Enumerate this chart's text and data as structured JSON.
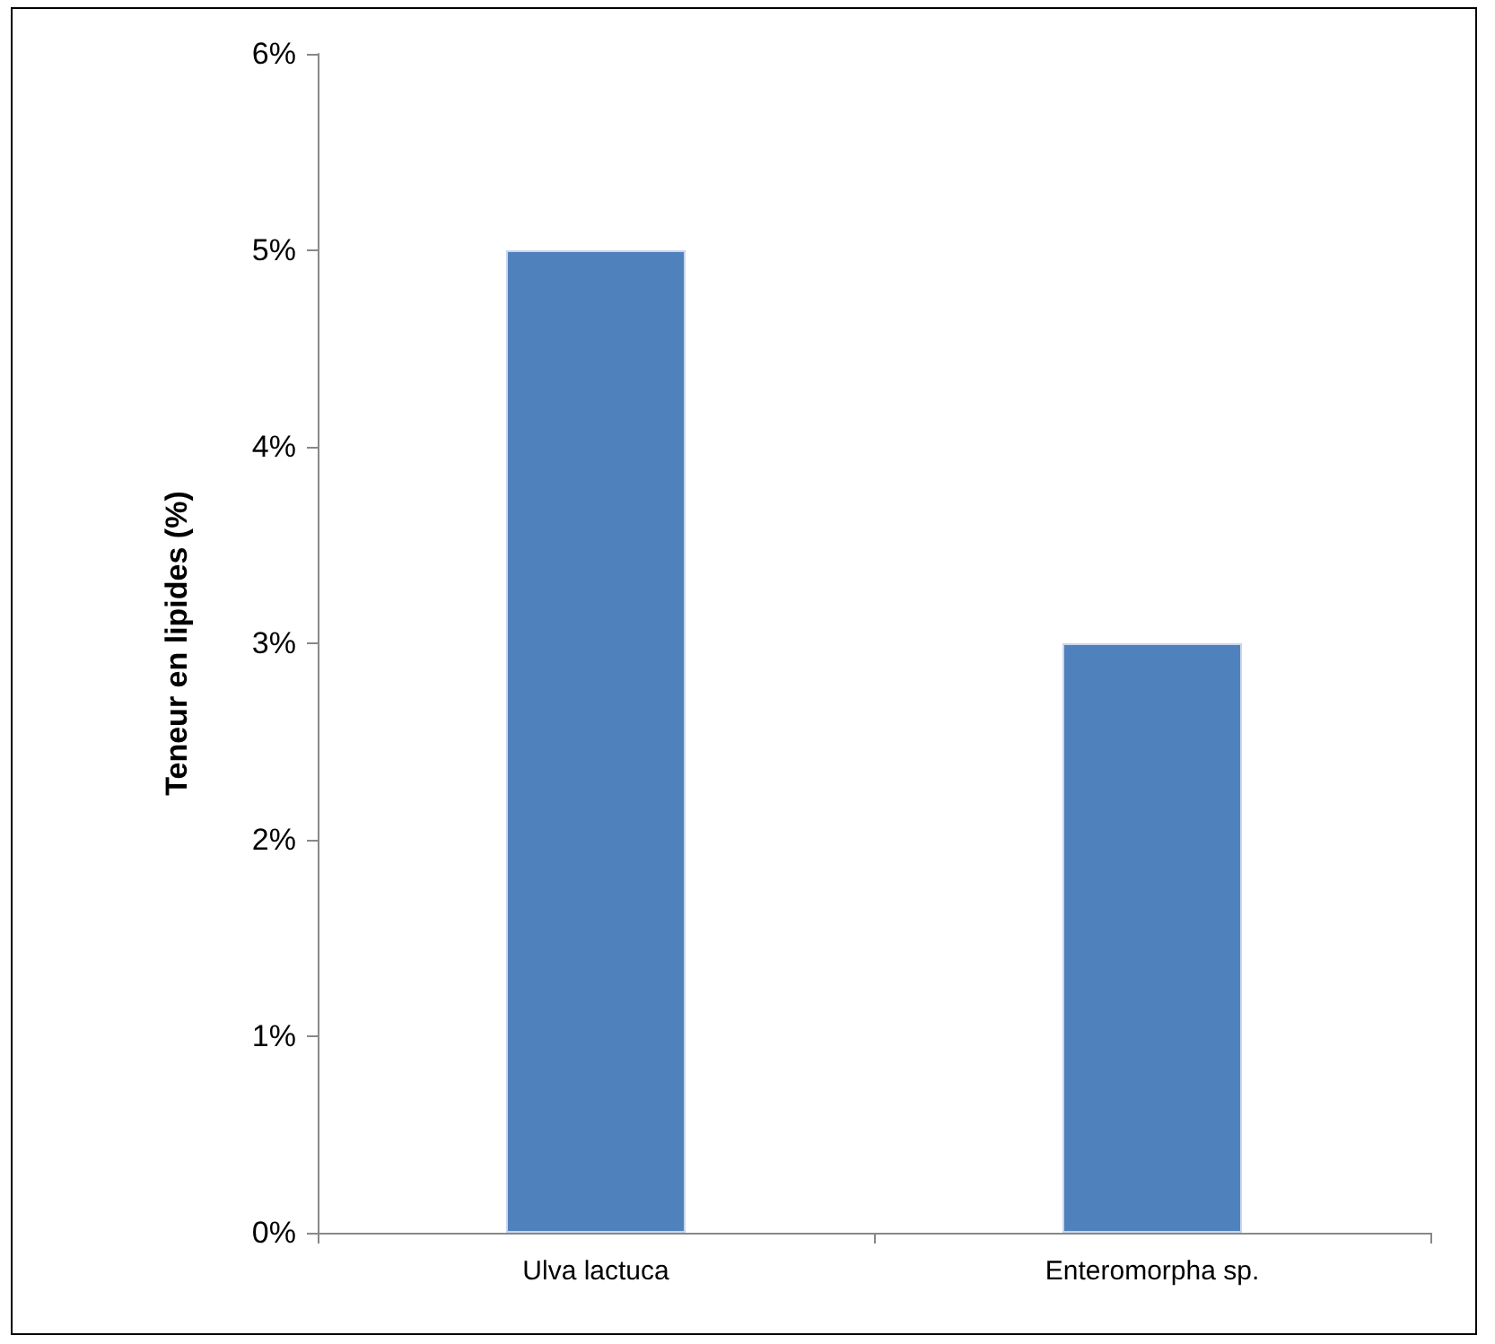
{
  "chart_data": {
    "type": "bar",
    "ylabel": "Teneur en lipides (%)",
    "categories": [
      "Ulva lactuca",
      "Enteromorpha sp."
    ],
    "values": [
      5,
      3
    ],
    "color": "#4f81bd",
    "ylim": [
      0,
      6
    ],
    "yticks": [
      {
        "value": 0,
        "label": "0%"
      },
      {
        "value": 1,
        "label": "1%"
      },
      {
        "value": 2,
        "label": "2%"
      },
      {
        "value": 3,
        "label": "3%"
      },
      {
        "value": 4,
        "label": "4%"
      },
      {
        "value": 5,
        "label": "5%"
      },
      {
        "value": 6,
        "label": "6%"
      }
    ],
    "grid": false
  }
}
